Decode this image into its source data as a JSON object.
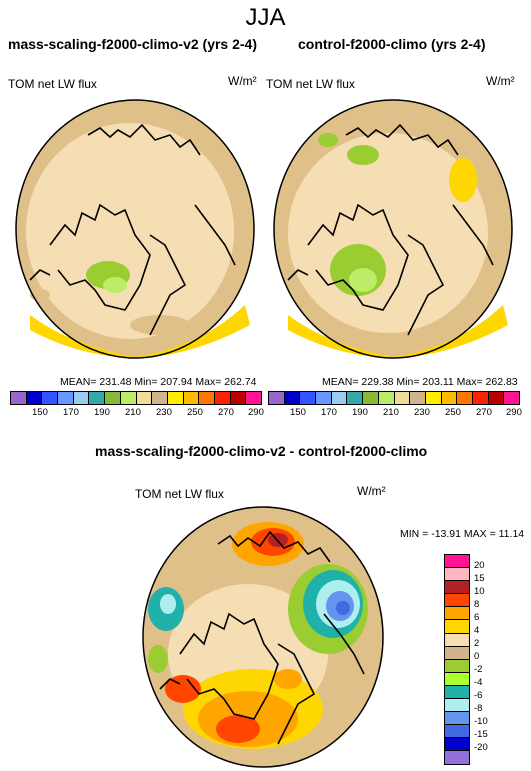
{
  "title": "JJA",
  "panels": [
    {
      "title": "mass-scaling-f2000-climo-v2 (yrs 2-4)",
      "variable": "TOM net LW flux",
      "units": "W/m²",
      "stats": "MEAN= 231.48  Min= 207.94  Max= 262.74"
    },
    {
      "title": "control-f2000-climo (yrs 2-4)",
      "variable": "TOM net LW flux",
      "units": "W/m²",
      "stats": "MEAN= 229.38  Min= 203.11  Max= 262.83"
    },
    {
      "title": "mass-scaling-f2000-climo-v2 - control-f2000-climo",
      "variable": "TOM net LW flux",
      "units": "W/m²",
      "stats": "MIN = -13.91  MAX =  11.14"
    }
  ],
  "chart_data": [
    {
      "type": "heatmap",
      "title": "mass-scaling-f2000-climo-v2 (yrs 2-4)",
      "projection": "polar stereographic (North Pole)",
      "field": "TOM net LW flux",
      "units": "W/m2",
      "mean": 231.48,
      "min": 207.94,
      "max": 262.74,
      "colorbar_levels": [
        150,
        160,
        170,
        180,
        190,
        200,
        210,
        220,
        230,
        240,
        250,
        260,
        270,
        280,
        290
      ],
      "colorbar_tick_labels": [
        "150",
        "170",
        "190",
        "210",
        "230",
        "250",
        "270",
        "290"
      ],
      "colorbar_colors": [
        "#9966cc",
        "#0000cc",
        "#3355ff",
        "#6699ff",
        "#99ccee",
        "#33aaaa",
        "#88bb33",
        "#bbee66",
        "#eedd99",
        "#d2b48c",
        "#ffee00",
        "#ffbb00",
        "#ff7700",
        "#ff2200",
        "#bb0000",
        "#ff1493"
      ]
    },
    {
      "type": "heatmap",
      "title": "control-f2000-climo (yrs 2-4)",
      "projection": "polar stereographic (North Pole)",
      "field": "TOM net LW flux",
      "units": "W/m2",
      "mean": 229.38,
      "min": 203.11,
      "max": 262.83,
      "colorbar_levels": [
        150,
        160,
        170,
        180,
        190,
        200,
        210,
        220,
        230,
        240,
        250,
        260,
        270,
        280,
        290
      ],
      "colorbar_tick_labels": [
        "150",
        "170",
        "190",
        "210",
        "230",
        "250",
        "270",
        "290"
      ],
      "colorbar_colors": [
        "#9966cc",
        "#0000cc",
        "#3355ff",
        "#6699ff",
        "#99ccee",
        "#33aaaa",
        "#88bb33",
        "#bbee66",
        "#eedd99",
        "#d2b48c",
        "#ffee00",
        "#ffbb00",
        "#ff7700",
        "#ff2200",
        "#bb0000",
        "#ff1493"
      ]
    },
    {
      "type": "heatmap",
      "title": "mass-scaling-f2000-climo-v2 - control-f2000-climo",
      "projection": "polar stereographic (North Pole)",
      "field": "TOM net LW flux",
      "units": "W/m2",
      "min": -13.91,
      "max": 11.14,
      "colorbar_levels": [
        20,
        15,
        10,
        8,
        6,
        4,
        2,
        0,
        -2,
        -4,
        -6,
        -8,
        -10,
        -15,
        -20
      ],
      "colorbar_tick_labels": [
        "20",
        "15",
        "10",
        "8",
        "6",
        "4",
        "2",
        "0",
        "-2",
        "-4",
        "-6",
        "-8",
        "-10",
        "-15",
        "-20"
      ],
      "colorbar_colors": [
        "#ff1493",
        "#ffb6c1",
        "#b22222",
        "#ff4500",
        "#ffa500",
        "#ffd700",
        "#f5deb3",
        "#d2b48c",
        "#9acd32",
        "#adff2f",
        "#20b2aa",
        "#afeeee",
        "#6495ed",
        "#4169e1",
        "#0000cd",
        "#9370db"
      ]
    }
  ]
}
